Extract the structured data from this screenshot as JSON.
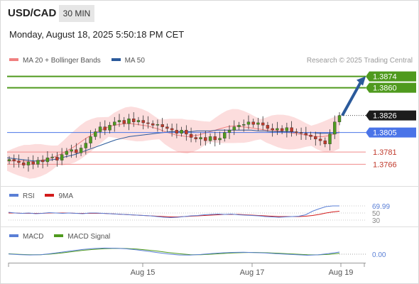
{
  "header": {
    "symbol": "USD/CAD",
    "timeframe": "30 MIN",
    "datetime": "Monday, August 18, 2025 5:50:18 PM CET"
  },
  "legend_main": [
    {
      "label": "MA 20 + Bollinger Bands",
      "color": "#f08080"
    },
    {
      "label": "MA 50",
      "color": "#2b5a9b"
    }
  ],
  "research": "Research © 2025 Trading Central",
  "legend_rsi": [
    {
      "label": "RSI",
      "color": "#5a7fd6"
    },
    {
      "label": "9MA",
      "color": "#d21b1b"
    }
  ],
  "legend_macd": [
    {
      "label": "MACD",
      "color": "#5a7fd6"
    },
    {
      "label": "MACD Signal",
      "color": "#4f9a1e"
    }
  ],
  "colors": {
    "target": "#4f9a1e",
    "pivot": "#4a74e8",
    "support": "#f08a8a",
    "arrow": "#2b5a9b",
    "last_price": "#222222",
    "bull_candle": "#4f9a1e",
    "bear_candle": "#c0392b",
    "band_fill": "#fbd5d5",
    "ma20": "#f08080",
    "ma50": "#2b5a9b"
  },
  "chart_data": [
    {
      "type": "line",
      "title": "USD/CAD 30 MIN",
      "x_ticks": [
        "Aug 15",
        "Aug 17",
        "Aug 19"
      ],
      "ylim": [
        1.3748,
        1.3885
      ],
      "levels": [
        {
          "name": "target",
          "value": 1.3874,
          "label": "1.3874"
        },
        {
          "name": "target",
          "value": 1.386,
          "label": "1.3860"
        },
        {
          "name": "last",
          "value": 1.3826,
          "label": "1.3826"
        },
        {
          "name": "pivot",
          "value": 1.3805,
          "label": "1.3805"
        },
        {
          "name": "support",
          "value": 1.3781,
          "label": "1.3781"
        },
        {
          "name": "support",
          "value": 1.3766,
          "label": "1.3766"
        }
      ],
      "series": [
        {
          "name": "Price",
          "values": [
            1.3772,
            1.377,
            1.3768,
            1.3765,
            1.3769,
            1.3766,
            1.3771,
            1.3769,
            1.3774,
            1.3775,
            1.3771,
            1.3778,
            1.3782,
            1.3784,
            1.378,
            1.3786,
            1.3792,
            1.38,
            1.3806,
            1.3812,
            1.3808,
            1.3814,
            1.3818,
            1.382,
            1.3816,
            1.3822,
            1.3818,
            1.382,
            1.3817,
            1.3816,
            1.3814,
            1.3815,
            1.3812,
            1.381,
            1.3808,
            1.3804,
            1.3808,
            1.3803,
            1.3799,
            1.3797,
            1.3799,
            1.3795,
            1.38,
            1.3796,
            1.3798,
            1.3805,
            1.3808,
            1.3812,
            1.3814,
            1.3815,
            1.3818,
            1.3815,
            1.3817,
            1.3814,
            1.381,
            1.3808,
            1.381,
            1.3807,
            1.3811,
            1.3806,
            1.3805,
            1.3804,
            1.3802,
            1.38,
            1.3797,
            1.3795,
            1.3791,
            1.3803,
            1.3818,
            1.3826
          ]
        },
        {
          "name": "MA 20",
          "values": [
            1.377,
            1.377,
            1.377,
            1.377,
            1.3769,
            1.377,
            1.3771,
            1.3772,
            1.3774,
            1.3777,
            1.378,
            1.3784,
            1.3788,
            1.3793,
            1.3798,
            1.3802,
            1.3806,
            1.3809,
            1.3812,
            1.3814,
            1.3815,
            1.3816,
            1.3816,
            1.3815,
            1.3814,
            1.3813,
            1.3811,
            1.3809,
            1.3806,
            1.3804,
            1.3802,
            1.3801,
            1.38,
            1.3801,
            1.3802,
            1.3804,
            1.3806,
            1.3808,
            1.381,
            1.3812,
            1.3813,
            1.3813,
            1.3812,
            1.3811,
            1.381,
            1.3809,
            1.3808,
            1.3808,
            1.3807,
            1.3806,
            1.3805,
            1.3804,
            1.3803,
            1.3802,
            1.3801,
            1.38,
            1.38,
            1.3801,
            1.3803,
            1.3806
          ]
        },
        {
          "name": "MA 50",
          "values": [
            1.3774,
            1.3773,
            1.3772,
            1.3771,
            1.377,
            1.377,
            1.3771,
            1.3772,
            1.3774,
            1.3776,
            1.3778,
            1.3781,
            1.3784,
            1.3787,
            1.379,
            1.3793,
            1.3796,
            1.3798,
            1.38,
            1.3801,
            1.3802,
            1.3803,
            1.3804,
            1.3805,
            1.3806,
            1.3806,
            1.3806,
            1.3806,
            1.3807,
            1.3807,
            1.3807,
            1.3808,
            1.3808,
            1.3808,
            1.3808,
            1.3808,
            1.3808,
            1.3807,
            1.3807,
            1.3806,
            1.3806,
            1.3806,
            1.3806,
            1.3805,
            1.3805,
            1.3805,
            1.3804,
            1.3804,
            1.3804,
            1.3805
          ]
        }
      ]
    },
    {
      "type": "line",
      "title": "RSI",
      "y_ticks": [
        "69.99",
        "50",
        "30"
      ],
      "series": [
        {
          "name": "RSI",
          "values": [
            52,
            50,
            49,
            50,
            48,
            49,
            51,
            50,
            49,
            50,
            49,
            48,
            50,
            50,
            49,
            48,
            47,
            46,
            45,
            44,
            43,
            42,
            40,
            38,
            37,
            38,
            40,
            42,
            43,
            45,
            46,
            47,
            46,
            47,
            45,
            44,
            43,
            42,
            40,
            39,
            38,
            39,
            40,
            41,
            45,
            55,
            62,
            68,
            69.99,
            69.99
          ]
        },
        {
          "name": "9MA",
          "values": [
            50,
            50,
            49,
            49,
            49,
            49,
            50,
            50,
            50,
            50,
            49,
            49,
            49,
            49,
            49,
            48,
            47,
            46,
            45,
            44,
            43,
            42,
            41,
            40,
            39,
            39,
            40,
            41,
            42,
            43,
            44,
            45,
            46,
            46,
            46,
            45,
            44,
            43,
            42,
            41,
            40,
            40,
            40,
            40,
            41,
            43,
            46,
            50,
            53,
            55
          ]
        }
      ]
    },
    {
      "type": "line",
      "title": "MACD",
      "y_ticks": [
        "0.00"
      ],
      "series": [
        {
          "name": "MACD",
          "values": [
            0.1,
            -0.3,
            -0.6,
            -0.4,
            0.5,
            1.5,
            2.6,
            3.6,
            4.2,
            4.5,
            4.4,
            4.0,
            3.2,
            2.2,
            1.1,
            0.1,
            -0.6,
            -0.7,
            -0.2,
            0.5,
            1.0,
            1.3,
            1.4,
            1.2,
            0.9,
            0.4,
            0.0,
            -0.4,
            -0.8,
            -0.5,
            0.5,
            1.6
          ]
        },
        {
          "name": "MACD Signal",
          "values": [
            0.3,
            -0.1,
            -0.4,
            -0.4,
            0.1,
            0.9,
            1.9,
            2.9,
            3.6,
            4.1,
            4.3,
            4.2,
            3.8,
            3.1,
            2.2,
            1.2,
            0.3,
            -0.3,
            -0.4,
            0.0,
            0.5,
            0.9,
            1.2,
            1.3,
            1.1,
            0.8,
            0.4,
            0.0,
            -0.4,
            -0.5,
            -0.1,
            0.6
          ]
        }
      ]
    }
  ]
}
